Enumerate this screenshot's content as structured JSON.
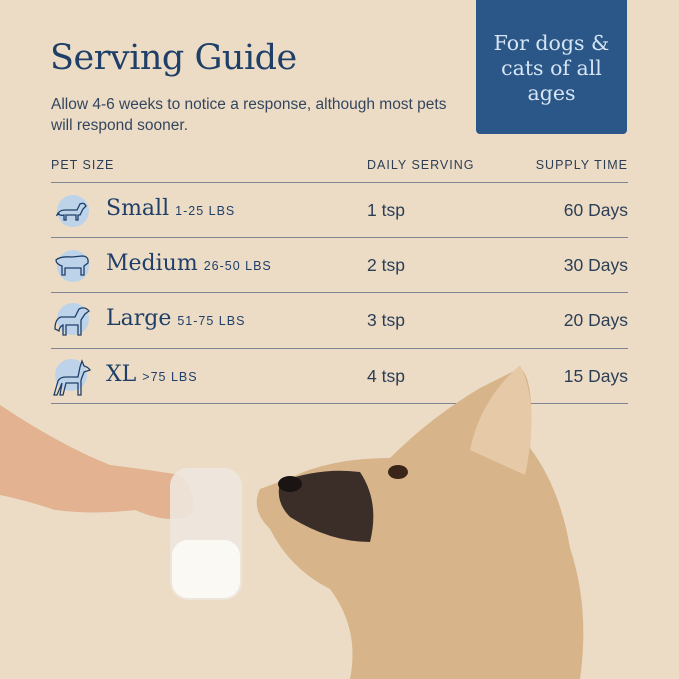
{
  "title": "Serving Guide",
  "subtitle": "Allow 4-6 weeks to notice a response, although most pets will respond sooner.",
  "badge": "For dogs & cats of all ages",
  "columns": {
    "pet_size": "PET SIZE",
    "daily_serving": "DAILY SERVING",
    "supply_time": "SUPPLY TIME"
  },
  "rows": [
    {
      "size": "Small",
      "weight": "1-25 LBS",
      "serving": "1 tsp",
      "supply": "60 Days",
      "icon": "dachshund-icon"
    },
    {
      "size": "Medium",
      "weight": "26-50 LBS",
      "serving": "2 tsp",
      "supply": "30 Days",
      "icon": "bulldog-icon"
    },
    {
      "size": "Large",
      "weight": "51-75 LBS",
      "serving": "3 tsp",
      "supply": "20 Days",
      "icon": "retriever-icon"
    },
    {
      "size": "XL",
      "weight": ">75 LBS",
      "serving": "4 tsp",
      "supply": "15 Days",
      "icon": "doberman-icon"
    }
  ],
  "colors": {
    "background": "#ecdcc6",
    "navy": "#1f3f68",
    "badge": "#2a5787",
    "icon_circle": "#bcd3ea"
  }
}
